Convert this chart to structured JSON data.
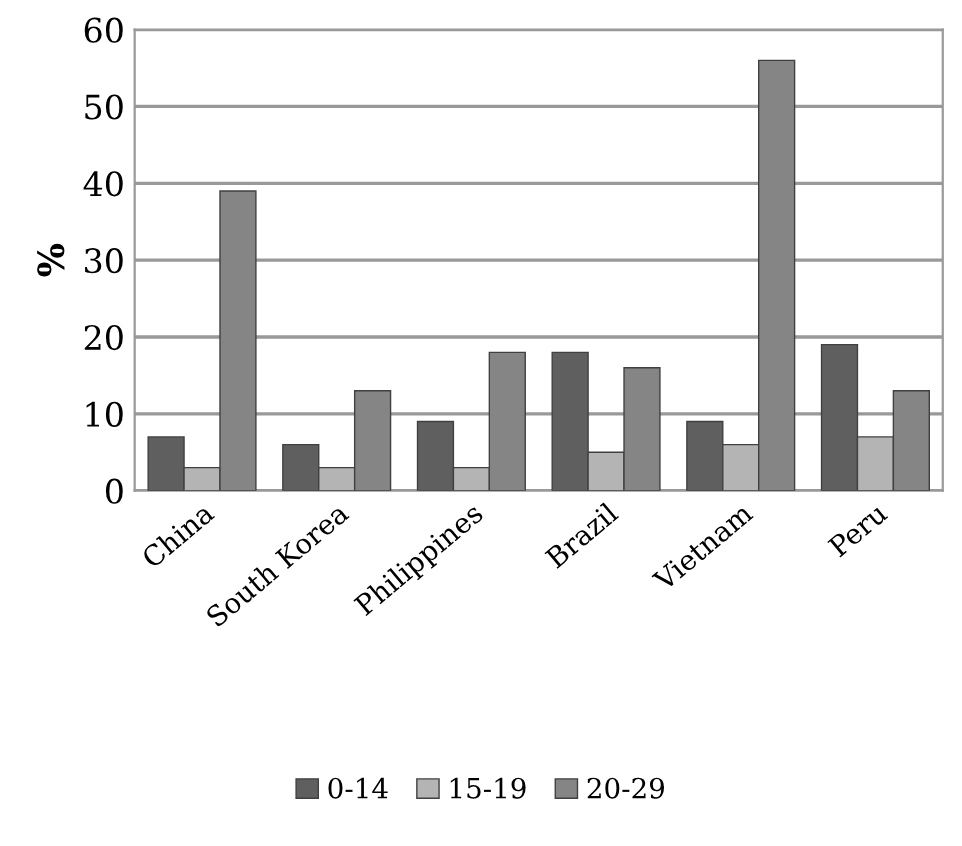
{
  "chart_data": {
    "type": "bar",
    "ylabel": "%",
    "categories": [
      "China",
      "South Korea",
      "Philippines",
      "Brazil",
      "Vietnam",
      "Peru"
    ],
    "series": [
      {
        "name": "0-14",
        "color": "#5f5f5f",
        "values": [
          7,
          6,
          9,
          18,
          9,
          19
        ]
      },
      {
        "name": "15-19",
        "color": "#b4b4b4",
        "values": [
          3,
          3,
          3,
          5,
          6,
          7
        ]
      },
      {
        "name": "20-29",
        "color": "#858585",
        "values": [
          39,
          13,
          18,
          16,
          56,
          13
        ]
      }
    ],
    "ylim": [
      0,
      60
    ],
    "yticks": [
      0,
      10,
      20,
      30,
      40,
      50,
      60
    ],
    "grid": "y",
    "legend": "bottom"
  }
}
